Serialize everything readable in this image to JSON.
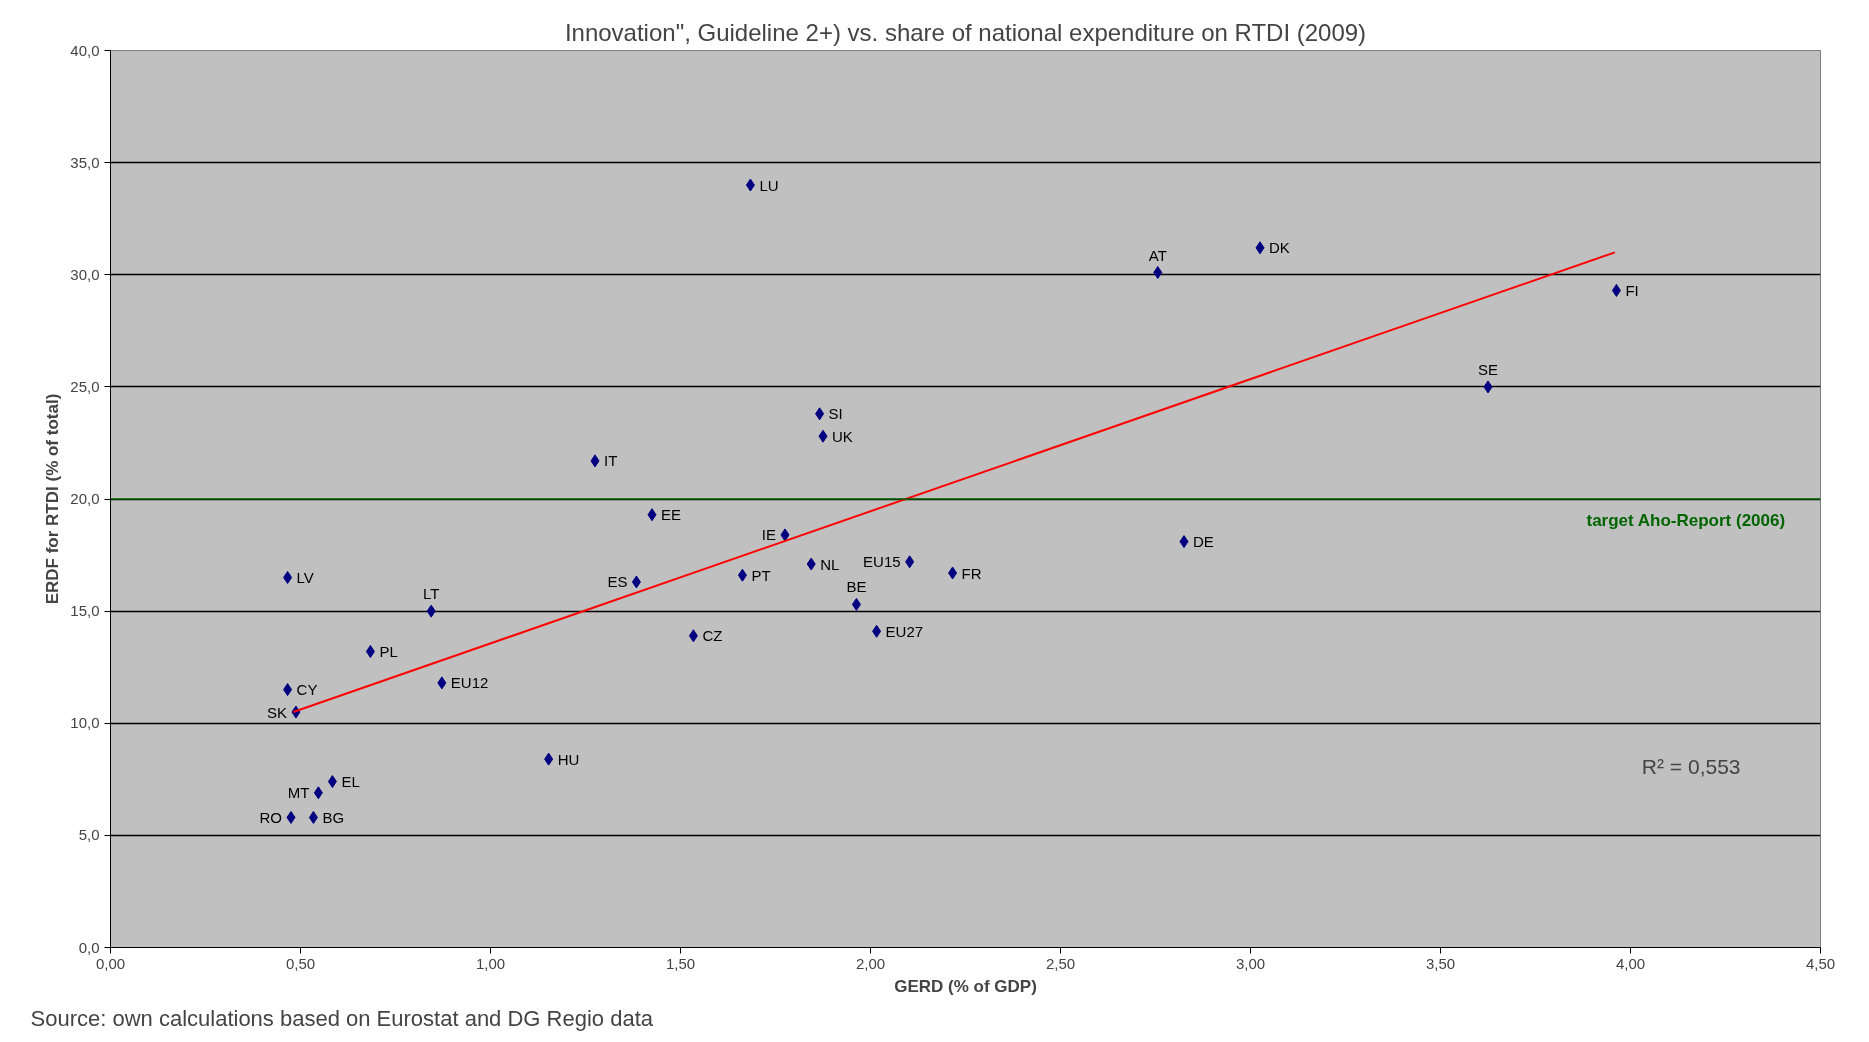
{
  "chart_data": {
    "type": "scatter",
    "title": "Innovation\", Guideline 2+) vs. share of national expenditure on RTDI (2009)",
    "xlabel": "GERD (% of GDP)",
    "ylabel": "ERDF for RTDI (% of total)",
    "x": [
      1.684,
      3.025,
      2.756,
      3.963,
      3.625,
      1.866,
      1.875,
      1.275,
      1.425,
      1.775,
      2.825,
      2.103,
      1.844,
      2.216,
      0.466,
      1.663,
      1.384,
      0.844,
      1.963,
      2.016,
      1.534,
      0.684,
      0.872,
      0.466,
      0.488,
      1.153,
      0.584,
      0.547,
      0.475,
      0.534
    ],
    "series": [
      {
        "color": "#000080",
        "marker": "diamond",
        "values": [
          34.0,
          31.2,
          30.1,
          29.3,
          25.0,
          23.8,
          22.8,
          21.7,
          19.3,
          18.4,
          18.1,
          17.2,
          17.1,
          16.7,
          16.5,
          16.6,
          16.3,
          15.0,
          15.3,
          14.1,
          13.9,
          13.2,
          11.8,
          11.5,
          10.5,
          8.4,
          7.4,
          6.9,
          5.8,
          5.8
        ]
      },
      {
        "type": "line",
        "color": "#ff0000",
        "x": [
          0.481,
          3.959
        ],
        "values": [
          10.5,
          31.0
        ]
      }
    ],
    "line_style": "solid",
    "grid": "y",
    "xlim": [
      0,
      4.5
    ],
    "ylim": [
      0,
      40
    ],
    "xticks": [
      {
        "value": 0,
        "label": "0,00"
      },
      {
        "value": 0.5,
        "label": "0,50"
      },
      {
        "value": 1,
        "label": "1,00"
      },
      {
        "value": 1.5,
        "label": "1,50"
      },
      {
        "value": 2,
        "label": "2,00"
      },
      {
        "value": 2.5,
        "label": "2,50"
      },
      {
        "value": 3,
        "label": "3,00"
      },
      {
        "value": 3.5,
        "label": "3,50"
      },
      {
        "value": 4,
        "label": "4,00"
      },
      {
        "value": 4.5,
        "label": "4,50"
      }
    ],
    "yticks": [
      {
        "value": 0,
        "label": "0,0"
      },
      {
        "value": 5,
        "label": "5,0"
      },
      {
        "value": 10,
        "label": "10,0"
      },
      {
        "value": 15,
        "label": "15,0"
      },
      {
        "value": 20,
        "label": "20,0"
      },
      {
        "value": 25,
        "label": "25,0"
      },
      {
        "value": 30,
        "label": "30,0"
      },
      {
        "value": 35,
        "label": "35,0"
      },
      {
        "value": 40,
        "label": "40,0"
      }
    ],
    "ref_lines": [
      {
        "axis": "y",
        "value": 20,
        "label": "target Aho-Report  (2006)",
        "color": "#006400"
      }
    ],
    "annotations": [
      {
        "text": "LU",
        "x": 1.684,
        "y": 34.0
      },
      {
        "text": "DK",
        "x": 3.025,
        "y": 31.2
      },
      {
        "text": "AT",
        "x": 2.756,
        "y": 30.1
      },
      {
        "text": "FI",
        "x": 3.963,
        "y": 29.3
      },
      {
        "text": "SE",
        "x": 3.625,
        "y": 25.0
      },
      {
        "text": "SI",
        "x": 1.866,
        "y": 23.8
      },
      {
        "text": "UK",
        "x": 1.875,
        "y": 22.8
      },
      {
        "text": "IT",
        "x": 1.275,
        "y": 21.7
      },
      {
        "text": "EE",
        "x": 1.425,
        "y": 19.3
      },
      {
        "text": "IE",
        "x": 1.775,
        "y": 18.4
      },
      {
        "text": "DE",
        "x": 2.825,
        "y": 18.1
      },
      {
        "text": "EU15",
        "x": 2.103,
        "y": 17.2
      },
      {
        "text": "NL",
        "x": 1.844,
        "y": 17.1
      },
      {
        "text": "FR",
        "x": 2.216,
        "y": 16.7
      },
      {
        "text": "LV",
        "x": 0.466,
        "y": 16.5
      },
      {
        "text": "PT",
        "x": 1.663,
        "y": 16.6
      },
      {
        "text": "ES",
        "x": 1.384,
        "y": 16.3
      },
      {
        "text": "LT",
        "x": 0.844,
        "y": 15.0
      },
      {
        "text": "BE",
        "x": 1.963,
        "y": 15.3
      },
      {
        "text": "EU27",
        "x": 2.016,
        "y": 14.1
      },
      {
        "text": "CZ",
        "x": 1.534,
        "y": 13.9
      },
      {
        "text": "PL",
        "x": 0.684,
        "y": 13.2
      },
      {
        "text": "EU12",
        "x": 0.872,
        "y": 11.8
      },
      {
        "text": "CY",
        "x": 0.466,
        "y": 11.5
      },
      {
        "text": "SK",
        "x": 0.488,
        "y": 10.5
      },
      {
        "text": "HU",
        "x": 1.153,
        "y": 8.4
      },
      {
        "text": "EL",
        "x": 0.584,
        "y": 7.4
      },
      {
        "text": "MT",
        "x": 0.547,
        "y": 6.9
      },
      {
        "text": "RO",
        "x": 0.475,
        "y": 5.8
      },
      {
        "text": "BG",
        "x": 0.534,
        "y": 5.8
      },
      "R² = 0,553",
      "Source: own calculations based on Eurostat and DG Regio data"
    ]
  }
}
